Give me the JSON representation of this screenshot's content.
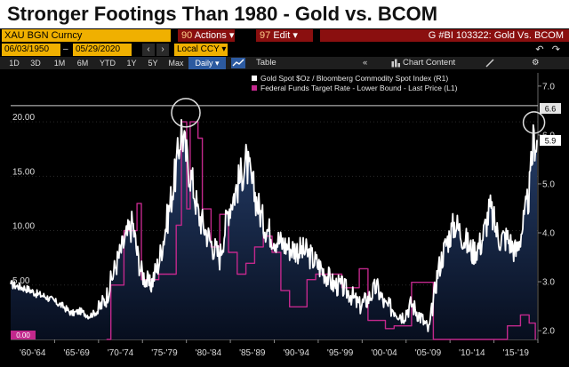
{
  "title": "Stronger Footings Than 1980 - Gold vs. BCOM",
  "toolbar": {
    "ticker": "XAU BGN Curncy",
    "actions_num": "90",
    "actions_label": "Actions ▾",
    "edit_num": "97",
    "edit_label": "Edit ▾",
    "chart_id": "G #BI 103322: Gold Vs. BCOM",
    "start_date": "06/03/1950",
    "end_date": "05/29/2020",
    "date_sep": "–",
    "currency": "Local CCY ▾",
    "periods": [
      "1D",
      "3D",
      "1M",
      "6M",
      "YTD",
      "1Y",
      "5Y",
      "Max"
    ],
    "frequency": "Daily ▾",
    "table_label": "Table",
    "chart_content_label": "Chart Content",
    "collapse_glyph": "«",
    "gear_glyph": "⚙",
    "undo_glyph": "↶",
    "redo_glyph": "↷",
    "prev_glyph": "‹",
    "next_glyph": "›"
  },
  "colors": {
    "gold": "#ffffff",
    "fed": "#c2288c",
    "area_top": "#27406d",
    "area_bottom": "#070e1e",
    "accent": "#f0b000",
    "menu": "#8a0f0f"
  },
  "chart_data": {
    "type": "line",
    "title": "Stronger Footings Than 1980 - Gold vs. BCOM",
    "x_labels": [
      "'60-'64",
      "'65-'69",
      "'70-'74",
      "'75-'79",
      "'80-'84",
      "'85-'89",
      "'90-'94",
      "'95-'99",
      "'00-'04",
      "'05-'09",
      "'10-'14",
      "'15-'19"
    ],
    "x_range": [
      1960,
      2020.5
    ],
    "left_axis": {
      "ticks": [
        "5.00",
        "10.00",
        "15.00",
        "20.00"
      ],
      "tick_values": [
        5,
        10,
        15,
        20
      ],
      "range": [
        0,
        24.5
      ]
    },
    "right_axis": {
      "ticks": [
        "2.0",
        "3.0",
        "4.0",
        "5.0",
        "6.0",
        "7.0"
      ],
      "tick_values": [
        2,
        3,
        4,
        5,
        6,
        7
      ],
      "range": [
        1.82,
        7.27
      ]
    },
    "right_labels": {
      "gold_last": "5.9",
      "reference": "6.6"
    },
    "reference_line_value": 6.6,
    "legend": [
      "Gold Spot $Oz / Bloomberg Commodity Spot Index (R1)",
      "Federal Funds Target Rate - Lower Bound - Last Price (L1)"
    ],
    "left_corner_label": "0.00",
    "series": [
      {
        "name": "Gold Spot $Oz / Bloomberg Commodity Spot Index (R1)",
        "axis": "right",
        "points": [
          [
            1960,
            2.95
          ],
          [
            1961,
            2.9
          ],
          [
            1962,
            2.85
          ],
          [
            1963,
            2.75
          ],
          [
            1964,
            2.7
          ],
          [
            1965,
            2.6
          ],
          [
            1966,
            2.5
          ],
          [
            1967,
            2.35
          ],
          [
            1968,
            2.4
          ],
          [
            1969,
            2.3
          ],
          [
            1970,
            2.4
          ],
          [
            1971,
            2.7
          ],
          [
            1972,
            3.3
          ],
          [
            1973,
            3.8
          ],
          [
            1974,
            4.2
          ],
          [
            1974.5,
            3.6
          ],
          [
            1975,
            3.2
          ],
          [
            1976,
            2.9
          ],
          [
            1977,
            3.4
          ],
          [
            1978,
            4.3
          ],
          [
            1979,
            5.3
          ],
          [
            1979.6,
            6.15
          ],
          [
            1980,
            5.7
          ],
          [
            1981,
            4.9
          ],
          [
            1981.5,
            4.4
          ],
          [
            1982,
            4.2
          ],
          [
            1983,
            3.8
          ],
          [
            1984,
            3.5
          ],
          [
            1985,
            4.5
          ],
          [
            1986,
            4.95
          ],
          [
            1987,
            5.45
          ],
          [
            1988,
            4.8
          ],
          [
            1989,
            4.2
          ],
          [
            1990,
            3.95
          ],
          [
            1991,
            3.8
          ],
          [
            1992,
            3.7
          ],
          [
            1993,
            3.65
          ],
          [
            1994,
            3.6
          ],
          [
            1995,
            3.4
          ],
          [
            1996,
            3.2
          ],
          [
            1997,
            2.95
          ],
          [
            1998,
            2.9
          ],
          [
            1999,
            2.75
          ],
          [
            2000,
            2.5
          ],
          [
            2001,
            2.65
          ],
          [
            2002,
            2.9
          ],
          [
            2003,
            2.5
          ],
          [
            2004,
            2.45
          ],
          [
            2005,
            2.3
          ],
          [
            2006,
            2.55
          ],
          [
            2007,
            2.3
          ],
          [
            2008,
            2.0
          ],
          [
            2008.5,
            2.6
          ],
          [
            2009,
            3.2
          ],
          [
            2010,
            3.8
          ],
          [
            2011,
            4.2
          ],
          [
            2012,
            3.9
          ],
          [
            2013,
            3.6
          ],
          [
            2014,
            3.8
          ],
          [
            2015,
            4.5
          ],
          [
            2016,
            3.9
          ],
          [
            2017,
            3.9
          ],
          [
            2018,
            3.6
          ],
          [
            2019,
            4.3
          ],
          [
            2019.5,
            4.8
          ],
          [
            2020,
            5.9
          ],
          [
            2020.4,
            5.9
          ]
        ]
      },
      {
        "name": "Federal Funds Target Rate - Lower Bound - Last Price (L1)",
        "axis": "left",
        "points": [
          [
            1971,
            0
          ],
          [
            1971.5,
            5.0
          ],
          [
            1973,
            10.0
          ],
          [
            1974.5,
            12.5
          ],
          [
            1975,
            5.5
          ],
          [
            1977,
            6.0
          ],
          [
            1979,
            10.5
          ],
          [
            1979.6,
            20.0
          ],
          [
            1980.2,
            12.0
          ],
          [
            1980.6,
            20.0
          ],
          [
            1981.5,
            18.5
          ],
          [
            1982,
            12.0
          ],
          [
            1983,
            8.5
          ],
          [
            1984,
            11.5
          ],
          [
            1985,
            8.0
          ],
          [
            1986,
            6.0
          ],
          [
            1987,
            7.0
          ],
          [
            1988,
            8.5
          ],
          [
            1989,
            9.5
          ],
          [
            1990,
            8.0
          ],
          [
            1991,
            4.5
          ],
          [
            1992,
            3.0
          ],
          [
            1994,
            5.5
          ],
          [
            1995,
            6.0
          ],
          [
            1998,
            4.75
          ],
          [
            2000,
            6.5
          ],
          [
            2001,
            1.75
          ],
          [
            2003,
            1.0
          ],
          [
            2004,
            1.25
          ],
          [
            2006,
            5.25
          ],
          [
            2007.6,
            5.25
          ],
          [
            2008.5,
            0
          ],
          [
            2015.9,
            0
          ],
          [
            2017,
            1.25
          ],
          [
            2018.5,
            2.25
          ],
          [
            2019.5,
            1.5
          ],
          [
            2020.2,
            0
          ]
        ]
      }
    ]
  }
}
